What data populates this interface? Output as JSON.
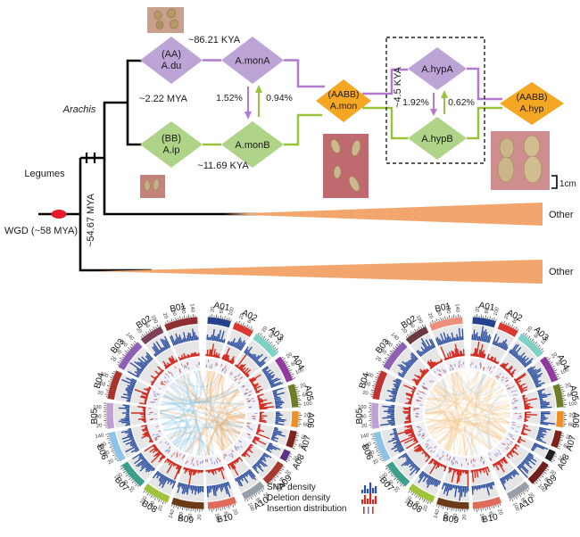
{
  "phylogeny": {
    "clade_labels": {
      "arachis": "Arachis",
      "legumes": "Legumes"
    },
    "events": {
      "kya_86": "~86.21 KYA",
      "mya_2": "~2.22 MYA",
      "kya_11": "~11.69 KYA",
      "kya_4": "~4.5 KYA",
      "mya_54": "~54.67 MYA",
      "wgd": "WGD (~58 MYA)"
    },
    "gene_flow": {
      "monA_to_monB": "1.52%",
      "monB_to_monA": "0.94%",
      "hypA_to_hypB": "1.92%",
      "hypB_to_hypA": "0.62%"
    },
    "nodes": {
      "adu": {
        "line1": "(AA)",
        "line2": "A.du"
      },
      "amona": {
        "label": "A.monA"
      },
      "aip": {
        "line1": "(BB)",
        "line2": "A.ip"
      },
      "amonb": {
        "label": "A.monB"
      },
      "amon": {
        "line1": "(AABB)",
        "line2": "A.mon"
      },
      "ahypa": {
        "label": "A.hypA"
      },
      "ahypb": {
        "label": "A.hypB"
      },
      "ahyp": {
        "line1": "(AABB)",
        "line2": "A.hyp"
      }
    },
    "other_taxa": {
      "top": "Other",
      "bottom": "Other"
    },
    "scale_bar": "1cm",
    "colors": {
      "purple": "#bca4d6",
      "green": "#afd488",
      "orange": "#f5a623",
      "purple_line": "#b279cf",
      "green_line": "#9ac33c",
      "wedge": "#f2a66e",
      "wgd_red": "#e8192c",
      "line_black": "#000000"
    }
  },
  "legend": {
    "items": [
      {
        "label": "SNP density"
      },
      {
        "label": "Deletion density"
      },
      {
        "label": "Insertion distribution"
      }
    ]
  },
  "chart_data": [
    {
      "type": "circos",
      "name": "left-circos",
      "position": "left",
      "tick_label_values": [
        20,
        60,
        100,
        140
      ],
      "tick_step_mb": 10,
      "tracks": [
        {
          "id": "snp",
          "label": "SNP density",
          "color": "#2b4ea0"
        },
        {
          "id": "deletion",
          "label": "Deletion density",
          "color": "#d3281e"
        },
        {
          "id": "insertion",
          "label": "Insertion distribution",
          "colors": [
            "#c0392b",
            "#6f7bc4"
          ]
        }
      ],
      "sectors": [
        {
          "id": "A01",
          "size_mb": 112,
          "color": "#23418f"
        },
        {
          "id": "A02",
          "size_mb": 96,
          "color": "#d93a2f"
        },
        {
          "id": "A03",
          "size_mb": 138,
          "color": "#7fd0c6"
        },
        {
          "id": "A04",
          "size_mb": 126,
          "color": "#8e3a9e"
        },
        {
          "id": "A05",
          "size_mb": 112,
          "color": "#6d7e2a"
        },
        {
          "id": "A06",
          "size_mb": 78,
          "color": "#ef8f23"
        },
        {
          "id": "A07",
          "size_mb": 82,
          "color": "#7a241c"
        },
        {
          "id": "A08",
          "size_mb": 52,
          "color": "#5f3387"
        },
        {
          "id": "A09",
          "size_mb": 118,
          "color": "#a93a30"
        },
        {
          "id": "A10",
          "size_mb": 112,
          "color": "#97a0a8"
        },
        {
          "id": "B10",
          "size_mb": 138,
          "color": "#df6b5a"
        },
        {
          "id": "B09",
          "size_mb": 156,
          "color": "#6b3a17"
        },
        {
          "id": "B08",
          "size_mb": 130,
          "color": "#9fc43c"
        },
        {
          "id": "B07",
          "size_mb": 134,
          "color": "#3aa08c"
        },
        {
          "id": "B06",
          "size_mb": 146,
          "color": "#8ec3e8"
        },
        {
          "id": "B05",
          "size_mb": 124,
          "color": "#c19fd4"
        },
        {
          "id": "B04",
          "size_mb": 140,
          "color": "#a8352b"
        },
        {
          "id": "B03",
          "size_mb": 150,
          "color": "#8f5fb5"
        },
        {
          "id": "B02",
          "size_mb": 112,
          "color": "#7c3f55"
        },
        {
          "id": "B01",
          "size_mb": 160,
          "color": "#8f2f33"
        }
      ],
      "links": {
        "mode": "by-group",
        "a_color": "rgba(235,175,110,0.32)",
        "b_color": "rgba(138,196,230,0.32)",
        "count": 95
      }
    },
    {
      "type": "circos",
      "name": "right-circos",
      "position": "right",
      "tick_label_values": [
        20,
        60,
        100,
        140
      ],
      "tick_step_mb": 10,
      "tracks": [
        {
          "id": "snp",
          "label": "SNP density",
          "color": "#2b4ea0"
        },
        {
          "id": "deletion",
          "label": "Deletion density",
          "color": "#d3281e"
        },
        {
          "id": "insertion",
          "label": "Insertion distribution",
          "colors": [
            "#c0392b",
            "#6f7bc4"
          ]
        }
      ],
      "sectors": [
        {
          "id": "A01",
          "size_mb": 112,
          "color": "#23418f"
        },
        {
          "id": "A02",
          "size_mb": 96,
          "color": "#d93a2f"
        },
        {
          "id": "A03",
          "size_mb": 138,
          "color": "#7fd0c6"
        },
        {
          "id": "A04",
          "size_mb": 126,
          "color": "#8e3a9e"
        },
        {
          "id": "A05",
          "size_mb": 112,
          "color": "#6d7e2a"
        },
        {
          "id": "A06",
          "size_mb": 78,
          "color": "#ef8f23"
        },
        {
          "id": "A07",
          "size_mb": 82,
          "color": "#7a241c"
        },
        {
          "id": "A08",
          "size_mb": 52,
          "color": "#202020"
        },
        {
          "id": "A09",
          "size_mb": 118,
          "color": "#701f1f"
        },
        {
          "id": "A10",
          "size_mb": 112,
          "color": "#97a0a8"
        },
        {
          "id": "B10",
          "size_mb": 138,
          "color": "#df6b5a"
        },
        {
          "id": "B09",
          "size_mb": 156,
          "color": "#6b3a17"
        },
        {
          "id": "B08",
          "size_mb": 130,
          "color": "#9fc43c"
        },
        {
          "id": "B07",
          "size_mb": 134,
          "color": "#3aa08c"
        },
        {
          "id": "B06",
          "size_mb": 146,
          "color": "#8ec3e8"
        },
        {
          "id": "B05",
          "size_mb": 124,
          "color": "#c19fd4"
        },
        {
          "id": "B04",
          "size_mb": 140,
          "color": "#bf3430"
        },
        {
          "id": "B03",
          "size_mb": 150,
          "color": "#8f5fb5"
        },
        {
          "id": "B02",
          "size_mb": 112,
          "color": "#6b3a40"
        },
        {
          "id": "B01",
          "size_mb": 160,
          "color": "#ee8f7e"
        }
      ],
      "links": {
        "mode": "mixed",
        "a_ratio": 0.8,
        "a_color": "rgba(246,200,140,0.30)",
        "b_color": "rgba(160,205,235,0.28)",
        "count": 95
      }
    }
  ]
}
